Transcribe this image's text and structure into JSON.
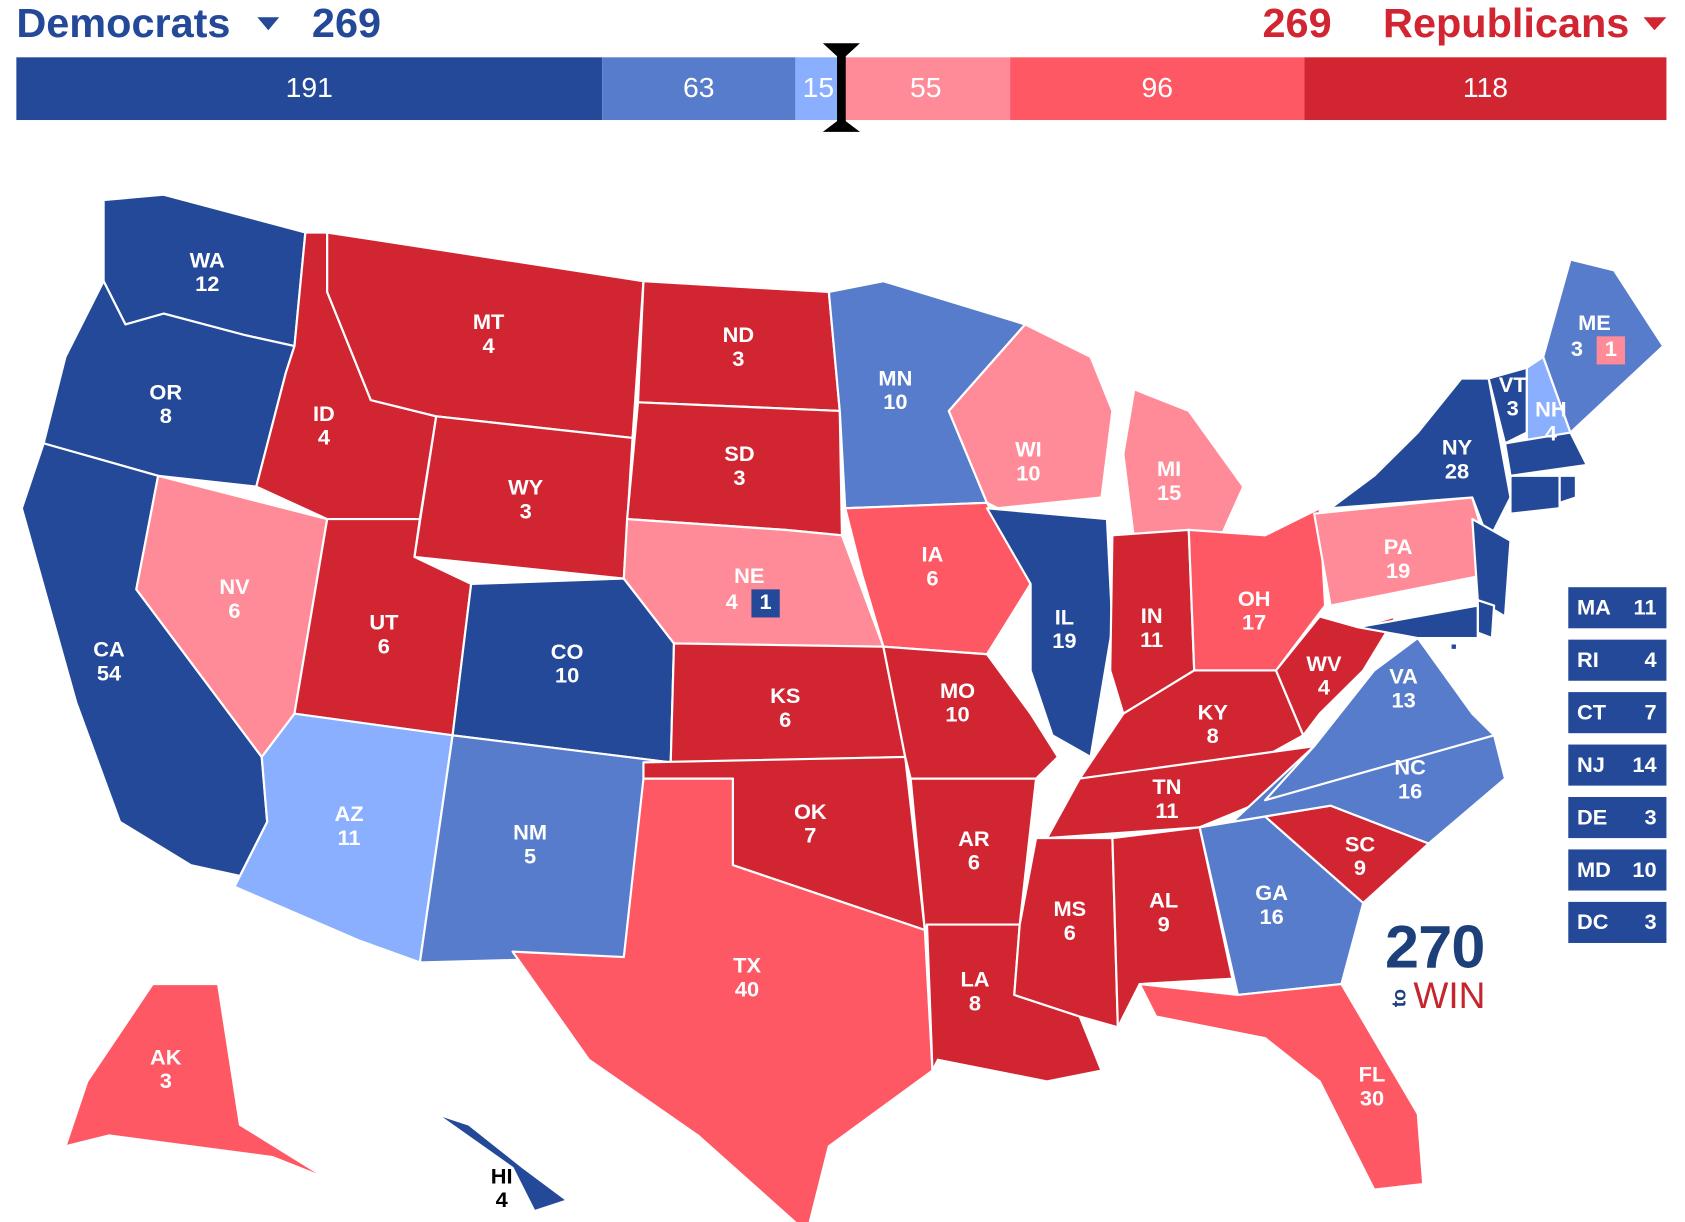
{
  "header": {
    "dem_label": "Democrats",
    "dem_total": "269",
    "rep_total": "269",
    "rep_label": "Republicans",
    "dem_color": "#244999",
    "rep_color": "#d22532"
  },
  "bar": [
    {
      "value": 191,
      "color": "#244999"
    },
    {
      "value": 63,
      "color": "#577ccc"
    },
    {
      "value": 15,
      "color": "#8aafff"
    },
    {
      "value": 55,
      "color": "#ff8b98"
    },
    {
      "value": 96,
      "color": "#ff5865"
    },
    {
      "value": 118,
      "color": "#d22532"
    }
  ],
  "states": [
    {
      "abbr": "WA",
      "ev": "12",
      "color": "#244999"
    },
    {
      "abbr": "OR",
      "ev": "8",
      "color": "#244999"
    },
    {
      "abbr": "CA",
      "ev": "54",
      "color": "#244999"
    },
    {
      "abbr": "NV",
      "ev": "6",
      "color": "#ff8b98"
    },
    {
      "abbr": "ID",
      "ev": "4",
      "color": "#d22532"
    },
    {
      "abbr": "MT",
      "ev": "4",
      "color": "#d22532"
    },
    {
      "abbr": "WY",
      "ev": "3",
      "color": "#d22532"
    },
    {
      "abbr": "UT",
      "ev": "6",
      "color": "#d22532"
    },
    {
      "abbr": "CO",
      "ev": "10",
      "color": "#244999"
    },
    {
      "abbr": "AZ",
      "ev": "11",
      "color": "#8aafff"
    },
    {
      "abbr": "NM",
      "ev": "5",
      "color": "#577ccc"
    },
    {
      "abbr": "ND",
      "ev": "3",
      "color": "#d22532"
    },
    {
      "abbr": "SD",
      "ev": "3",
      "color": "#d22532"
    },
    {
      "abbr": "NE",
      "ev": "4",
      "color": "#ff8b98",
      "split_ev": "1",
      "split_color": "#244999"
    },
    {
      "abbr": "KS",
      "ev": "6",
      "color": "#d22532"
    },
    {
      "abbr": "OK",
      "ev": "7",
      "color": "#d22532"
    },
    {
      "abbr": "TX",
      "ev": "40",
      "color": "#ff5865"
    },
    {
      "abbr": "MN",
      "ev": "10",
      "color": "#577ccc"
    },
    {
      "abbr": "IA",
      "ev": "6",
      "color": "#ff5865"
    },
    {
      "abbr": "MO",
      "ev": "10",
      "color": "#d22532"
    },
    {
      "abbr": "AR",
      "ev": "6",
      "color": "#d22532"
    },
    {
      "abbr": "LA",
      "ev": "8",
      "color": "#d22532"
    },
    {
      "abbr": "WI",
      "ev": "10",
      "color": "#ff8b98"
    },
    {
      "abbr": "IL",
      "ev": "19",
      "color": "#244999"
    },
    {
      "abbr": "MI",
      "ev": "15",
      "color": "#ff8b98"
    },
    {
      "abbr": "IN",
      "ev": "11",
      "color": "#d22532"
    },
    {
      "abbr": "OH",
      "ev": "17",
      "color": "#ff5865"
    },
    {
      "abbr": "KY",
      "ev": "8",
      "color": "#d22532"
    },
    {
      "abbr": "TN",
      "ev": "11",
      "color": "#d22532"
    },
    {
      "abbr": "MS",
      "ev": "6",
      "color": "#d22532"
    },
    {
      "abbr": "AL",
      "ev": "9",
      "color": "#d22532"
    },
    {
      "abbr": "GA",
      "ev": "16",
      "color": "#577ccc"
    },
    {
      "abbr": "FL",
      "ev": "30",
      "color": "#ff5865"
    },
    {
      "abbr": "SC",
      "ev": "9",
      "color": "#d22532"
    },
    {
      "abbr": "NC",
      "ev": "16",
      "color": "#577ccc"
    },
    {
      "abbr": "VA",
      "ev": "13",
      "color": "#577ccc"
    },
    {
      "abbr": "WV",
      "ev": "4",
      "color": "#d22532"
    },
    {
      "abbr": "PA",
      "ev": "19",
      "color": "#ff8b98"
    },
    {
      "abbr": "NY",
      "ev": "28",
      "color": "#244999"
    },
    {
      "abbr": "VT",
      "ev": "3",
      "color": "#244999"
    },
    {
      "abbr": "NH",
      "ev": "4",
      "color": "#8aafff"
    },
    {
      "abbr": "ME",
      "ev": "3",
      "color": "#577ccc",
      "split_ev": "1",
      "split_color": "#ff8b98"
    },
    {
      "abbr": "AK",
      "ev": "3",
      "color": "#ff5865"
    },
    {
      "abbr": "HI",
      "ev": "4",
      "color": "#244999"
    }
  ],
  "small_states": [
    {
      "abbr": "MA",
      "ev": "11",
      "color": "#244999"
    },
    {
      "abbr": "RI",
      "ev": "4",
      "color": "#244999"
    },
    {
      "abbr": "CT",
      "ev": "7",
      "color": "#244999"
    },
    {
      "abbr": "NJ",
      "ev": "14",
      "color": "#244999"
    },
    {
      "abbr": "DE",
      "ev": "3",
      "color": "#244999"
    },
    {
      "abbr": "MD",
      "ev": "10",
      "color": "#244999"
    },
    {
      "abbr": "DC",
      "ev": "3",
      "color": "#244999"
    }
  ],
  "logo": {
    "number": "270",
    "to": "to",
    "win": "WIN"
  }
}
